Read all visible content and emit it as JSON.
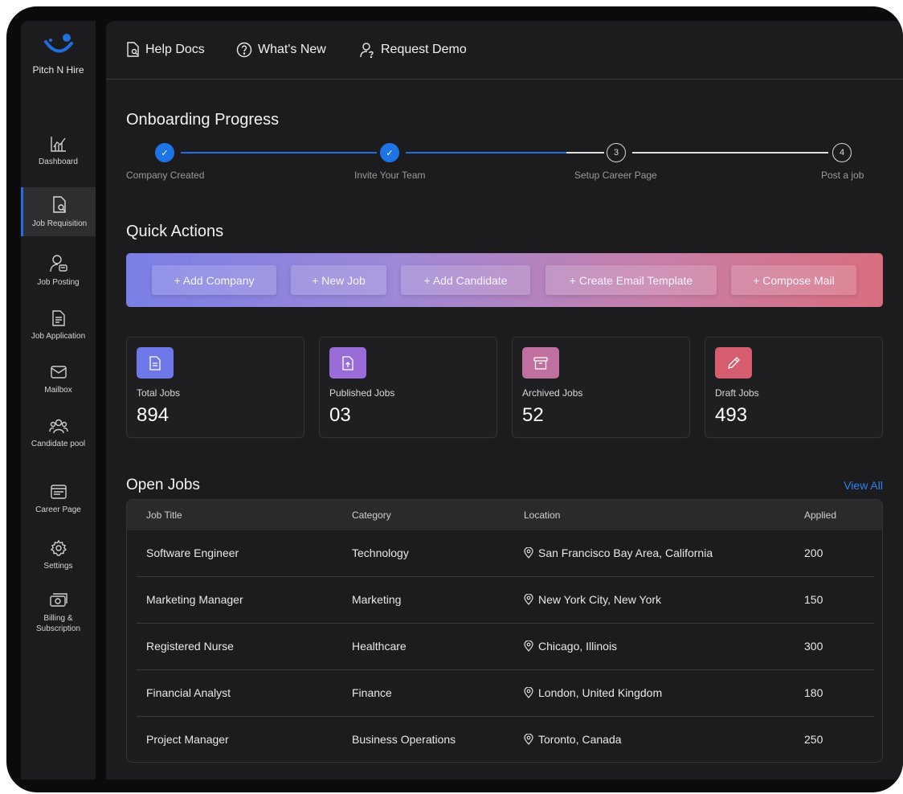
{
  "brand": {
    "name": "Pitch N Hire",
    "accent": "#1f6fe0"
  },
  "sidebar": {
    "items": [
      {
        "label": "Dashboard",
        "icon": "chart-icon",
        "active": false
      },
      {
        "label": "Job Requisition",
        "icon": "document-search-icon",
        "active": true
      },
      {
        "label": "Job Posting",
        "icon": "user-badge-icon",
        "active": false
      },
      {
        "label": "Job Application",
        "icon": "file-text-icon",
        "active": false
      },
      {
        "label": "Mailbox",
        "icon": "mail-icon",
        "active": false
      },
      {
        "label": "Candidate pool",
        "icon": "users-icon",
        "active": false
      },
      {
        "label": "Career Page",
        "icon": "browser-icon",
        "active": false
      },
      {
        "label": "Settings",
        "icon": "gear-icon",
        "active": false
      },
      {
        "label": "Billing & Subscription",
        "icon": "billing-icon",
        "active": false
      }
    ]
  },
  "topbar": {
    "help_docs": "Help Docs",
    "whats_new": "What's New",
    "request_demo": "Request Demo"
  },
  "onboarding": {
    "title": "Onboarding Progress",
    "steps": [
      {
        "label": "Company Created",
        "marker": "✓",
        "done": true
      },
      {
        "label": "Invite Your Team",
        "marker": "✓",
        "done": true
      },
      {
        "label": "Setup Career Page",
        "marker": "3",
        "done": false
      },
      {
        "label": "Post a job",
        "marker": "4",
        "done": false
      }
    ]
  },
  "quick_actions": {
    "title": "Quick Actions",
    "buttons": [
      "+ Add Company",
      "+ New Job",
      "+ Add Candidate",
      "+ Create Email Template",
      "+ Compose Mail"
    ]
  },
  "stats": [
    {
      "label": "Total Jobs",
      "value": "894",
      "icon": "document-icon",
      "color": "#6f78e8"
    },
    {
      "label": "Published Jobs",
      "value": "03",
      "icon": "upload-file-icon",
      "color": "#9a6cd8"
    },
    {
      "label": "Archived Jobs",
      "value": "52",
      "icon": "archive-icon",
      "color": "#c0709f"
    },
    {
      "label": "Draft Jobs",
      "value": "493",
      "icon": "pencil-icon",
      "color": "#d65d6f"
    }
  ],
  "open_jobs": {
    "title": "Open Jobs",
    "view_all": "View All",
    "columns": [
      "Job Title",
      "Category",
      "Location",
      "Applied"
    ],
    "rows": [
      [
        "Software Engineer",
        "Technology",
        "San Francisco Bay Area, California",
        "200"
      ],
      [
        "Marketing Manager",
        "Marketing",
        "New York City, New York",
        "150"
      ],
      [
        "Registered Nurse",
        "Healthcare",
        "Chicago, Illinois",
        "300"
      ],
      [
        "Financial Analyst",
        "Finance",
        "London, United Kingdom",
        "180"
      ],
      [
        "Project Manager",
        "Business Operations",
        "Toronto, Canada",
        "250"
      ]
    ]
  }
}
